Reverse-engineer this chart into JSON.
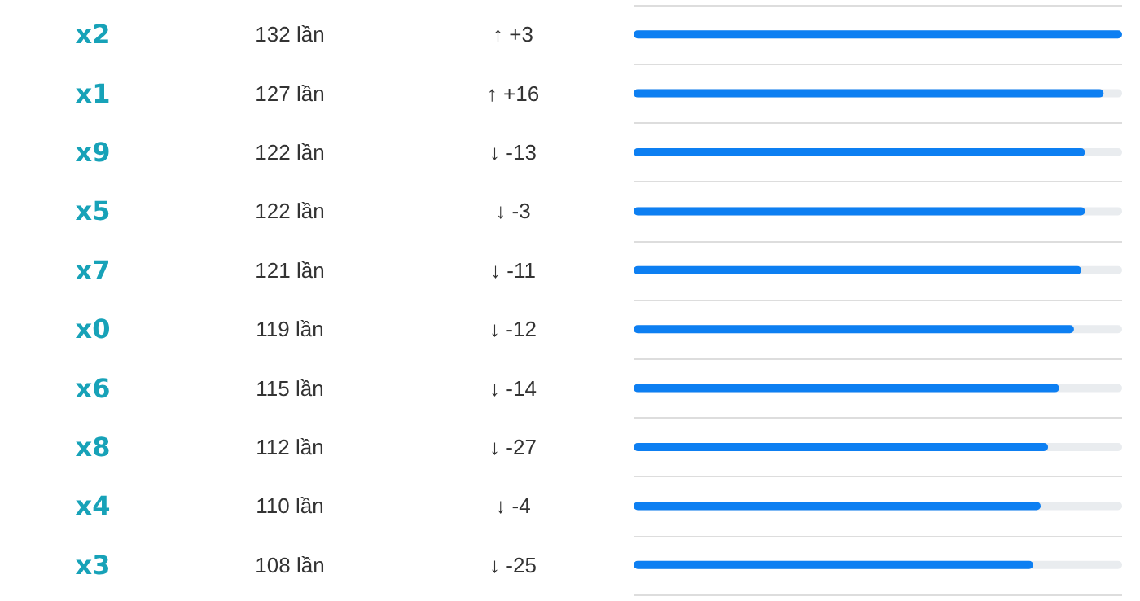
{
  "chart_data": {
    "type": "bar",
    "orientation": "horizontal",
    "categories": [
      "x2",
      "x1",
      "x9",
      "x5",
      "x7",
      "x0",
      "x6",
      "x8",
      "x4",
      "x3"
    ],
    "values": [
      132,
      127,
      122,
      122,
      121,
      119,
      115,
      112,
      110,
      108
    ],
    "value_labels": [
      "132 lần",
      "127 lần",
      "122 lần",
      "122 lần",
      "121 lần",
      "119 lần",
      "115 lần",
      "112 lần",
      "110 lần",
      "108 lần"
    ],
    "color": "#0d7ff2",
    "xlim": [
      0,
      132
    ],
    "tick_labels": "y",
    "grid": "y",
    "annotations": [
      "↑ +3",
      "↑ +16",
      "↓ -13",
      "↓ -3",
      "↓ -11",
      "↓ -12",
      "↓ -14",
      "↓ -27",
      "↓ -4",
      "↓ -25"
    ]
  }
}
